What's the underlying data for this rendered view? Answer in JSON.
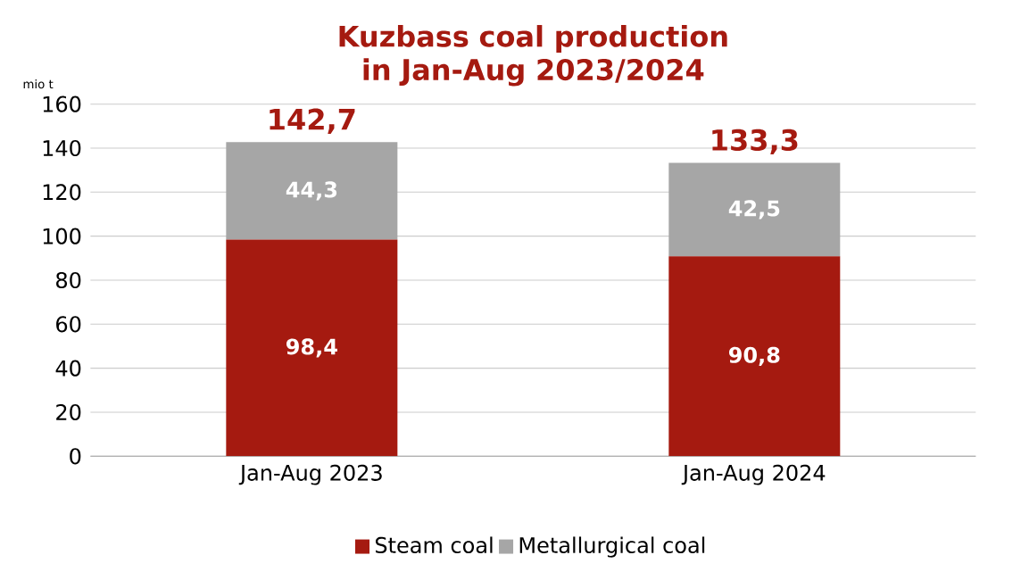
{
  "chart_data": {
    "type": "bar",
    "stacked": true,
    "title": "Kuzbass coal production  in Jan-Aug 2023/2024",
    "ylabel": "mio t",
    "categories": [
      "Jan-Aug 2023",
      "Jan-Aug 2024"
    ],
    "series": [
      {
        "name": "Steam coal",
        "color": "#a51a10",
        "values": [
          98.4,
          90.8
        ],
        "value_labels": [
          "98,4",
          "90,8"
        ]
      },
      {
        "name": "Metallurgical coal",
        "color": "#a6a6a6",
        "values": [
          44.3,
          42.5
        ],
        "value_labels": [
          "44,3",
          "42,5"
        ]
      }
    ],
    "totals": [
      "142,7",
      "133,3"
    ],
    "ylim": [
      0,
      160
    ],
    "yticks": [
      0,
      20,
      40,
      60,
      80,
      100,
      120,
      140,
      160
    ],
    "grid": "y",
    "legend": "bottom"
  }
}
